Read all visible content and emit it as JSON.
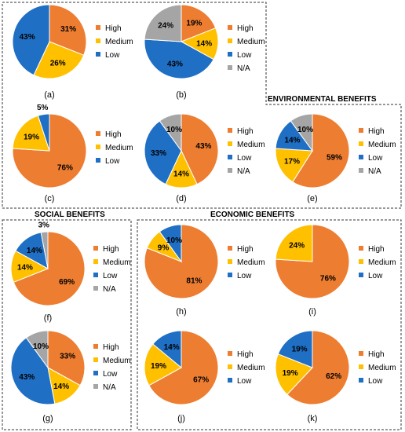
{
  "sections": {
    "environmental": "ENVIRONMENTAL BENEFITS",
    "social": "SOCIAL BENEFITS",
    "economic": "ECONOMIC BENEFITS"
  },
  "colors": {
    "High": "#ed7d31",
    "Medium": "#ffc000",
    "Low": "#1f6fc5",
    "N/A": "#a5a5a5"
  },
  "chart_data": [
    {
      "type": "pie",
      "label": "(a)",
      "categories": [
        "High",
        "Medium",
        "Low"
      ],
      "values": [
        31,
        26,
        43
      ],
      "value_labels": [
        "31%",
        "26%",
        "43%"
      ],
      "legend": [
        "High",
        "Medium",
        "Low"
      ]
    },
    {
      "type": "pie",
      "label": "(b)",
      "categories": [
        "High",
        "Medium",
        "Low",
        "N/A"
      ],
      "values": [
        19,
        14,
        43,
        24
      ],
      "value_labels": [
        "19%",
        "14%",
        "43%",
        "24%"
      ],
      "legend": [
        "High",
        "Medium",
        "Low",
        "N/A"
      ]
    },
    {
      "type": "pie",
      "label": "(c)",
      "categories": [
        "High",
        "Medium",
        "Low"
      ],
      "values": [
        76,
        19,
        5
      ],
      "value_labels": [
        "76%",
        "19%",
        "5%"
      ],
      "legend": [
        "High",
        "Medium",
        "Low"
      ]
    },
    {
      "type": "pie",
      "label": "(d)",
      "categories": [
        "High",
        "Medium",
        "Low",
        "N/A"
      ],
      "values": [
        43,
        14,
        33,
        10
      ],
      "value_labels": [
        "43%",
        "14%",
        "33%",
        "10%"
      ],
      "legend": [
        "High",
        "Medium",
        "Low",
        "N/A"
      ]
    },
    {
      "type": "pie",
      "label": "(e)",
      "categories": [
        "High",
        "Medium",
        "Low",
        "N/A"
      ],
      "values": [
        59,
        17,
        14,
        10
      ],
      "value_labels": [
        "59%",
        "17%",
        "14%",
        "10%"
      ],
      "legend": [
        "High",
        "Medium",
        "Low",
        "N/A"
      ]
    },
    {
      "type": "pie",
      "label": "(f)",
      "categories": [
        "High",
        "Medium",
        "Low",
        "N/A"
      ],
      "values": [
        69,
        14,
        14,
        3
      ],
      "value_labels": [
        "69%",
        "14%",
        "14%",
        "3%"
      ],
      "legend": [
        "High",
        "Medium",
        "Low",
        "N/A"
      ]
    },
    {
      "type": "pie",
      "label": "(g)",
      "categories": [
        "High",
        "Medium",
        "Low",
        "N/A"
      ],
      "values": [
        33,
        14,
        43,
        10
      ],
      "value_labels": [
        "33%",
        "14%",
        "43%",
        "10%"
      ],
      "legend": [
        "High",
        "Medium",
        "Low",
        "N/A"
      ]
    },
    {
      "type": "pie",
      "label": "(h)",
      "categories": [
        "High",
        "Medium",
        "Low"
      ],
      "values": [
        81,
        9,
        10
      ],
      "value_labels": [
        "81%",
        "9%",
        "10%"
      ],
      "legend": [
        "High",
        "Medium",
        "Low"
      ]
    },
    {
      "type": "pie",
      "label": "(i)",
      "categories": [
        "High",
        "Medium"
      ],
      "values": [
        76,
        24
      ],
      "value_labels": [
        "76%",
        "24%"
      ],
      "legend": [
        "High",
        "Medium",
        "Low"
      ]
    },
    {
      "type": "pie",
      "label": "(j)",
      "categories": [
        "High",
        "Medium",
        "Low"
      ],
      "values": [
        67,
        19,
        14
      ],
      "value_labels": [
        "67%",
        "19%",
        "14%"
      ],
      "legend": [
        "High",
        "Medium",
        "Low"
      ]
    },
    {
      "type": "pie",
      "label": "(k)",
      "categories": [
        "High",
        "Medium",
        "Low"
      ],
      "values": [
        62,
        19,
        19
      ],
      "value_labels": [
        "62%",
        "19%",
        "19%"
      ],
      "legend": [
        "High",
        "Medium",
        "Low"
      ]
    }
  ]
}
